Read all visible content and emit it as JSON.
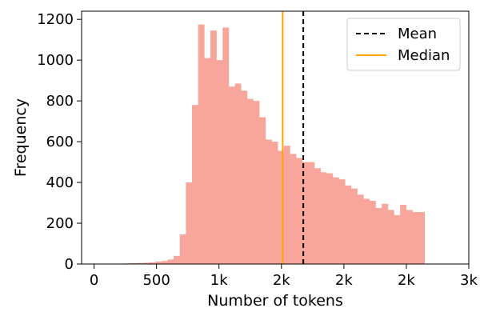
{
  "chart_data": {
    "type": "histogram",
    "xlabel": "Number of tokens",
    "ylabel": "Frequency",
    "xlim": [
      -100,
      3000
    ],
    "ylim": [
      0,
      1240
    ],
    "grid": false,
    "x_ticks": [
      {
        "value": 0,
        "label": "0"
      },
      {
        "value": 500,
        "label": "500"
      },
      {
        "value": 1000,
        "label": "1k"
      },
      {
        "value": 1500,
        "label": "2k"
      },
      {
        "value": 2000,
        "label": "2k"
      },
      {
        "value": 2500,
        "label": "2k"
      },
      {
        "value": 3000,
        "label": "3k"
      }
    ],
    "y_ticks": [
      {
        "value": 0,
        "label": "0"
      },
      {
        "value": 200,
        "label": "200"
      },
      {
        "value": 400,
        "label": "400"
      },
      {
        "value": 600,
        "label": "600"
      },
      {
        "value": 800,
        "label": "800"
      },
      {
        "value": 1000,
        "label": "1000"
      },
      {
        "value": 1200,
        "label": "1200"
      }
    ],
    "bins": {
      "start": 0,
      "width": 49,
      "counts": [
        0,
        0,
        0,
        1,
        2,
        3,
        4,
        5,
        6,
        8,
        12,
        15,
        22,
        40,
        145,
        400,
        780,
        1175,
        1010,
        1145,
        1000,
        1160,
        870,
        885,
        850,
        810,
        800,
        720,
        610,
        600,
        555,
        580,
        540,
        520,
        500,
        500,
        470,
        450,
        445,
        425,
        415,
        385,
        370,
        340,
        320,
        310,
        275,
        295,
        265,
        240,
        290,
        265,
        255,
        255
      ]
    },
    "bar_color": "#f8a69b",
    "reference_lines": [
      {
        "name": "Mean",
        "x": 1675,
        "color": "#000000",
        "style": "dashed"
      },
      {
        "name": "Median",
        "x": 1510,
        "color": "#ffa500",
        "style": "solid"
      }
    ],
    "legend_position": "top-right"
  }
}
